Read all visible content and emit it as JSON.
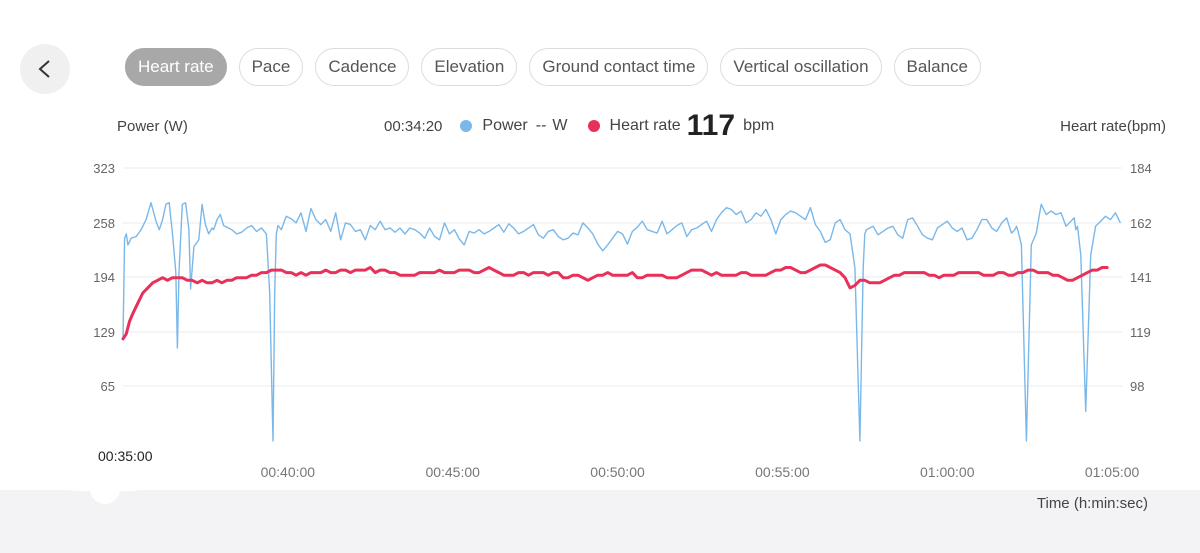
{
  "header": {
    "back_icon": "chevron-left-icon",
    "tabs": [
      {
        "label": "Heart rate",
        "active": true
      },
      {
        "label": "Pace",
        "active": false
      },
      {
        "label": "Cadence",
        "active": false
      },
      {
        "label": "Elevation",
        "active": false
      },
      {
        "label": "Ground contact time",
        "active": false
      },
      {
        "label": "Vertical oscillation",
        "active": false
      },
      {
        "label": "Balance",
        "active": false
      }
    ]
  },
  "legend": {
    "time": "00:34:20",
    "power_label": "Power",
    "power_value": "--",
    "power_unit": "W",
    "hr_label": "Heart rate",
    "hr_value": "117",
    "hr_unit": "bpm"
  },
  "slider": {
    "time": "00:35:00"
  },
  "chart_data": {
    "type": "line",
    "left_axis_title": "Power (W)",
    "right_axis_title": "Heart rate(bpm)",
    "xlabel": "Time (h:min:sec)",
    "left_ticks": [
      "323",
      "258",
      "194",
      "129",
      "65"
    ],
    "right_ticks": [
      "184",
      "162",
      "141",
      "119",
      "98"
    ],
    "x_ticks": [
      "00:40:00",
      "00:45:00",
      "00:50:00",
      "00:55:00",
      "01:00:00",
      "01:05:00"
    ],
    "colors": {
      "power": "#7ab8ea",
      "heart_rate": "#e8305a"
    },
    "xlim_min": [
      35,
      65.3
    ],
    "ylim_power": [
      0,
      323
    ],
    "ylim_hr": [
      77,
      184
    ],
    "series": [
      {
        "name": "Power",
        "x_min": [
          35.0,
          35.05,
          35.1,
          35.15,
          35.25,
          35.4,
          35.55,
          35.7,
          35.85,
          36.0,
          36.1,
          36.2,
          36.3,
          36.4,
          36.5,
          36.6,
          36.65,
          36.7,
          36.8,
          36.9,
          37.0,
          37.05,
          37.15,
          37.3,
          37.4,
          37.5,
          37.6,
          37.7,
          37.75,
          37.85,
          37.95,
          38.05,
          38.2,
          38.3,
          38.45,
          38.6,
          38.75,
          38.9,
          39.05,
          39.2,
          39.35,
          39.45,
          39.55,
          39.6,
          39.65,
          39.7,
          39.8,
          39.95,
          40.1,
          40.25,
          40.4,
          40.55,
          40.7,
          40.85,
          41.0,
          41.15,
          41.3,
          41.45,
          41.6,
          41.75,
          41.9,
          42.05,
          42.2,
          42.35,
          42.5,
          42.65,
          42.8,
          42.95,
          43.1,
          43.25,
          43.4,
          43.55,
          43.7,
          43.85,
          44.0,
          44.15,
          44.3,
          44.45,
          44.6,
          44.75,
          44.9,
          45.05,
          45.2,
          45.35,
          45.5,
          45.65,
          45.8,
          45.95,
          46.1,
          46.25,
          46.4,
          46.55,
          46.7,
          46.85,
          47.0,
          47.15,
          47.3,
          47.45,
          47.6,
          47.75,
          47.9,
          48.05,
          48.2,
          48.35,
          48.5,
          48.65,
          48.8,
          48.95,
          49.1,
          49.25,
          49.4,
          49.55,
          49.7,
          49.85,
          50.0,
          50.15,
          50.3,
          50.45,
          50.6,
          50.75,
          50.9,
          51.05,
          51.2,
          51.35,
          51.5,
          51.65,
          51.8,
          51.95,
          52.1,
          52.25,
          52.4,
          52.55,
          52.7,
          52.85,
          53.0,
          53.15,
          53.3,
          53.45,
          53.6,
          53.75,
          53.9,
          54.05,
          54.2,
          54.35,
          54.5,
          54.65,
          54.8,
          54.95,
          55.1,
          55.25,
          55.4,
          55.55,
          55.7,
          55.85,
          56.0,
          56.15,
          56.3,
          56.45,
          56.6,
          56.75,
          56.9,
          57.05,
          57.2,
          57.35,
          57.45,
          57.5,
          57.55,
          57.65,
          57.75,
          57.9,
          58.05,
          58.2,
          58.35,
          58.5,
          58.65,
          58.8,
          58.95,
          59.1,
          59.25,
          59.4,
          59.55,
          59.7,
          59.85,
          60.0,
          60.15,
          60.3,
          60.45,
          60.6,
          60.75,
          60.9,
          61.05,
          61.2,
          61.35,
          61.5,
          61.65,
          61.8,
          61.95,
          62.05,
          62.1,
          62.15,
          62.25,
          62.4,
          62.55,
          62.7,
          62.85,
          63.0,
          63.15,
          63.3,
          63.45,
          63.6,
          63.75,
          63.85,
          63.9,
          63.95,
          64.05,
          64.2,
          64.35,
          64.5,
          64.65,
          64.8,
          64.95,
          65.1,
          65.25
        ],
        "values": [
          120,
          240,
          245,
          232,
          240,
          242,
          250,
          262,
          282,
          260,
          250,
          262,
          280,
          282,
          245,
          200,
          110,
          200,
          280,
          282,
          250,
          180,
          230,
          238,
          280,
          256,
          245,
          252,
          250,
          262,
          268,
          255,
          252,
          250,
          245,
          247,
          252,
          255,
          248,
          252,
          245,
          175,
          0,
          175,
          245,
          255,
          250,
          266,
          263,
          258,
          270,
          248,
          275,
          262,
          256,
          262,
          248,
          270,
          238,
          258,
          256,
          248,
          250,
          238,
          255,
          250,
          260,
          250,
          252,
          247,
          252,
          245,
          252,
          250,
          246,
          240,
          252,
          242,
          238,
          258,
          245,
          250,
          239,
          232,
          248,
          246,
          250,
          245,
          248,
          252,
          256,
          247,
          257,
          252,
          245,
          248,
          252,
          256,
          244,
          240,
          248,
          250,
          242,
          238,
          240,
          246,
          244,
          258,
          252,
          245,
          233,
          225,
          232,
          240,
          248,
          245,
          233,
          248,
          253,
          260,
          250,
          248,
          246,
          260,
          245,
          250,
          255,
          258,
          242,
          250,
          252,
          256,
          260,
          248,
          262,
          270,
          276,
          274,
          268,
          272,
          258,
          262,
          270,
          266,
          274,
          262,
          245,
          262,
          268,
          272,
          270,
          266,
          262,
          276,
          256,
          248,
          235,
          238,
          258,
          262,
          250,
          245,
          205,
          0,
          205,
          245,
          250,
          252,
          254,
          244,
          248,
          252,
          254,
          244,
          240,
          262,
          264,
          254,
          244,
          240,
          238,
          252,
          256,
          260,
          252,
          248,
          252,
          238,
          240,
          250,
          262,
          262,
          252,
          248,
          258,
          264,
          246,
          250,
          254,
          248,
          232,
          0,
          232,
          246,
          280,
          268,
          272,
          268,
          270,
          254,
          260,
          264,
          250,
          254,
          220,
          35,
          220,
          254,
          260,
          266,
          262,
          270,
          258,
          268,
          254,
          262,
          250
        ]
      },
      {
        "name": "Heart rate",
        "x_min": [
          35.0,
          35.1,
          35.2,
          35.3,
          35.45,
          35.6,
          35.75,
          35.9,
          36.05,
          36.2,
          36.35,
          36.5,
          36.65,
          36.8,
          36.95,
          37.1,
          37.25,
          37.4,
          37.55,
          37.7,
          37.85,
          38.0,
          38.15,
          38.3,
          38.45,
          38.6,
          38.75,
          38.9,
          39.05,
          39.2,
          39.35,
          39.5,
          39.65,
          39.8,
          39.95,
          40.1,
          40.25,
          40.4,
          40.55,
          40.7,
          40.85,
          41.0,
          41.15,
          41.3,
          41.45,
          41.6,
          41.75,
          41.9,
          42.05,
          42.2,
          42.35,
          42.5,
          42.65,
          42.8,
          42.95,
          43.1,
          43.25,
          43.4,
          43.55,
          43.7,
          43.85,
          44.0,
          44.15,
          44.3,
          44.45,
          44.6,
          44.75,
          44.9,
          45.05,
          45.2,
          45.35,
          45.5,
          45.65,
          45.8,
          45.95,
          46.1,
          46.25,
          46.4,
          46.55,
          46.7,
          46.85,
          47.0,
          47.15,
          47.3,
          47.45,
          47.6,
          47.75,
          47.9,
          48.05,
          48.2,
          48.35,
          48.5,
          48.65,
          48.8,
          48.95,
          49.1,
          49.25,
          49.4,
          49.55,
          49.7,
          49.85,
          50.0,
          50.15,
          50.3,
          50.45,
          50.6,
          50.75,
          50.9,
          51.05,
          51.2,
          51.35,
          51.5,
          51.65,
          51.8,
          51.95,
          52.1,
          52.25,
          52.4,
          52.55,
          52.7,
          52.85,
          53.0,
          53.15,
          53.3,
          53.45,
          53.6,
          53.75,
          53.9,
          54.05,
          54.2,
          54.35,
          54.5,
          54.65,
          54.8,
          54.95,
          55.1,
          55.25,
          55.4,
          55.55,
          55.7,
          55.85,
          56.0,
          56.15,
          56.3,
          56.45,
          56.6,
          56.75,
          56.9,
          57.05,
          57.2,
          57.35,
          57.5,
          57.65,
          57.8,
          57.95,
          58.1,
          58.25,
          58.4,
          58.55,
          58.7,
          58.85,
          59.0,
          59.15,
          59.3,
          59.45,
          59.6,
          59.75,
          59.9,
          60.05,
          60.2,
          60.35,
          60.5,
          60.65,
          60.8,
          60.95,
          61.1,
          61.25,
          61.4,
          61.55,
          61.7,
          61.85,
          62.0,
          62.15,
          62.3,
          62.45,
          62.6,
          62.75,
          62.9,
          63.05,
          63.2,
          63.35,
          63.5,
          63.65,
          63.8,
          63.95,
          64.1,
          64.25,
          64.4,
          64.55,
          64.7,
          64.85,
          65.0,
          65.15,
          65.25
        ],
        "values": [
          117,
          119,
          124,
          127,
          131,
          135,
          137,
          139,
          140,
          141,
          140,
          141,
          141,
          141,
          140,
          140,
          139,
          140,
          139,
          139,
          140,
          139,
          140,
          140,
          141,
          141,
          141,
          142,
          142,
          143,
          143,
          144,
          144,
          144,
          143,
          143,
          142,
          143,
          142,
          143,
          143,
          143,
          144,
          143,
          143,
          144,
          144,
          143,
          144,
          144,
          144,
          145,
          143,
          144,
          144,
          143,
          143,
          142,
          142,
          142,
          142,
          143,
          143,
          143,
          143,
          144,
          143,
          143,
          143,
          144,
          144,
          144,
          143,
          143,
          144,
          145,
          144,
          143,
          142,
          142,
          142,
          143,
          143,
          142,
          143,
          143,
          143,
          142,
          143,
          143,
          141,
          141,
          142,
          142,
          141,
          140,
          141,
          142,
          142,
          143,
          142,
          142,
          142,
          142,
          143,
          141,
          141,
          142,
          142,
          142,
          142,
          141,
          141,
          141,
          142,
          143,
          144,
          144,
          144,
          143,
          142,
          143,
          142,
          142,
          142,
          142,
          143,
          143,
          142,
          142,
          142,
          142,
          143,
          144,
          144,
          145,
          145,
          144,
          143,
          143,
          144,
          145,
          146,
          146,
          145,
          144,
          143,
          141,
          137,
          138,
          140,
          140,
          139,
          139,
          139,
          140,
          141,
          142,
          142,
          143,
          143,
          143,
          143,
          143,
          142,
          142,
          141,
          142,
          142,
          142,
          143,
          143,
          143,
          143,
          143,
          142,
          142,
          142,
          143,
          143,
          142,
          142,
          143,
          143,
          144,
          144,
          143,
          143,
          143,
          142,
          142,
          141,
          140,
          140,
          141,
          142,
          143,
          144,
          144,
          145,
          145
        ]
      }
    ]
  }
}
